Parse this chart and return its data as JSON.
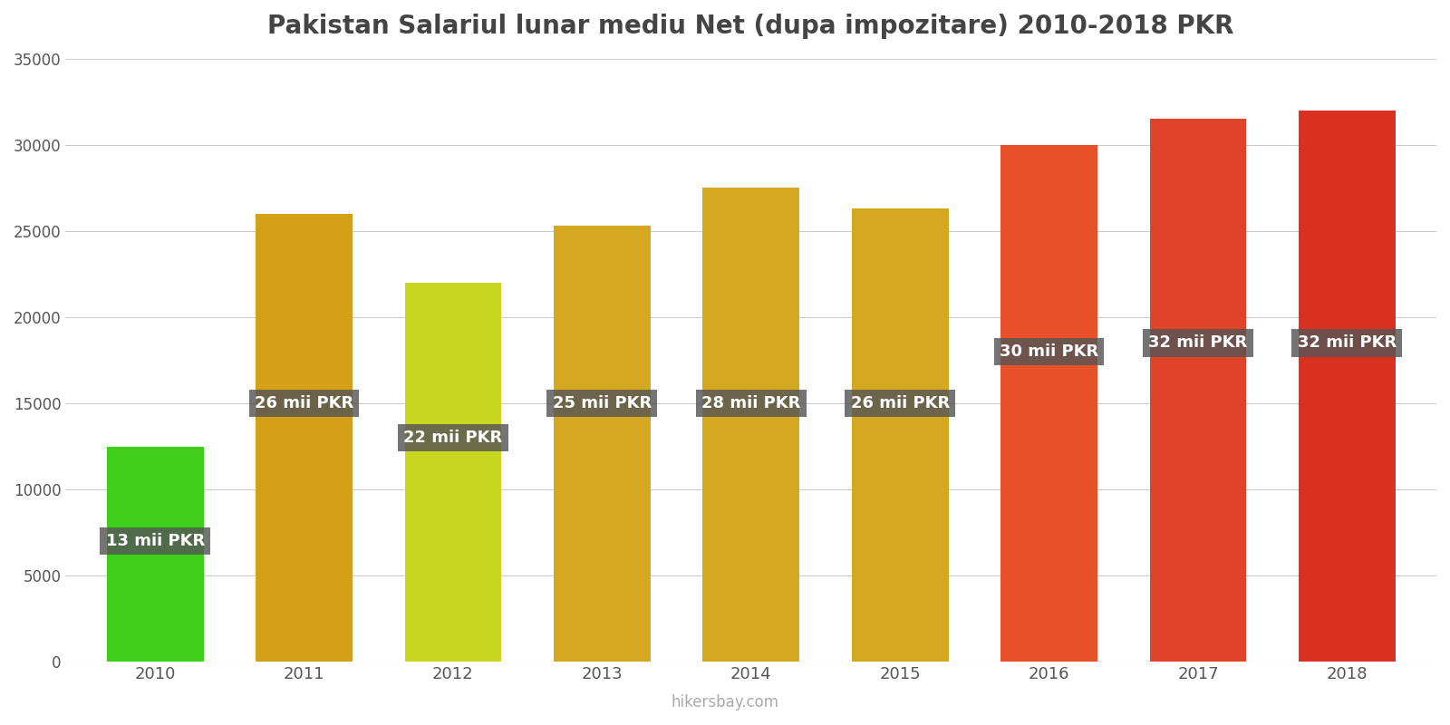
{
  "title": "Pakistan Salariul lunar mediu Net (dupa impozitare) 2010-2018 PKR",
  "years": [
    2010,
    2011,
    2012,
    2013,
    2014,
    2015,
    2016,
    2017,
    2018
  ],
  "values": [
    12500,
    26000,
    22000,
    25300,
    27500,
    26300,
    30000,
    31500,
    32000
  ],
  "labels": [
    "13 mii PKR",
    "26 mii PKR",
    "22 mii PKR",
    "25 mii PKR",
    "28 mii PKR",
    "26 mii PKR",
    "30 mii PKR",
    "32 mii PKR",
    "32 mii PKR"
  ],
  "label_y_positions": [
    7000,
    15000,
    13000,
    15000,
    15000,
    15000,
    18000,
    18500,
    18500
  ],
  "bar_colors": [
    "#3ecf1a",
    "#d4a017",
    "#c8d820",
    "#d4a820",
    "#d4a820",
    "#d4a820",
    "#e8502a",
    "#e04428",
    "#d93020"
  ],
  "label_bg_color": "#555555",
  "label_text_color": "#ffffff",
  "ylim": [
    0,
    35000
  ],
  "yticks": [
    0,
    5000,
    10000,
    15000,
    20000,
    25000,
    30000,
    35000
  ],
  "background_color": "#ffffff",
  "title_fontsize": 20,
  "watermark": "hikersbay.com"
}
